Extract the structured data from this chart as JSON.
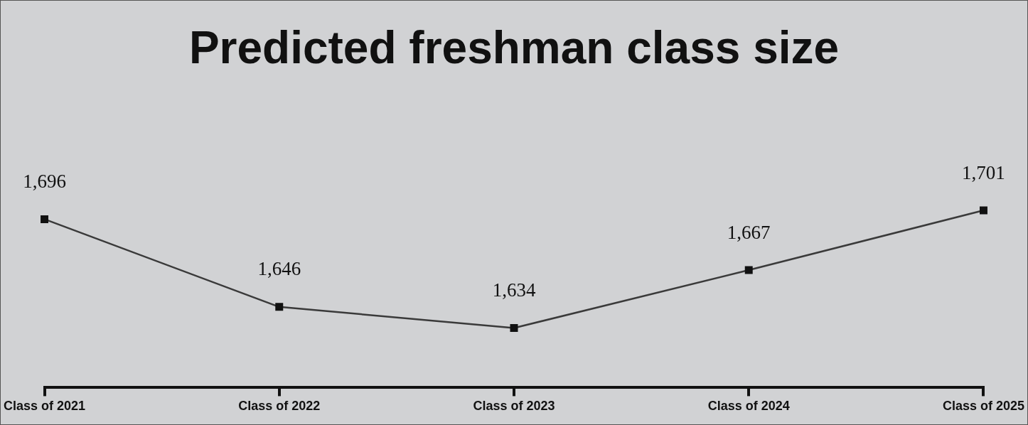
{
  "chart_data": {
    "type": "line",
    "title": "Predicted freshman class size",
    "categories": [
      "Class of 2021",
      "Class of 2022",
      "Class of 2023",
      "Class of 2024",
      "Class of 2025"
    ],
    "series": [
      {
        "color": "#3a3a3a",
        "values": [
          1696,
          1646,
          1634,
          1667,
          1701
        ],
        "value_labels": [
          "1,696",
          "1,646",
          "1,634",
          "1,667",
          "1,701"
        ]
      }
    ],
    "marker": "square",
    "line_style": "solid",
    "legend": false
  }
}
